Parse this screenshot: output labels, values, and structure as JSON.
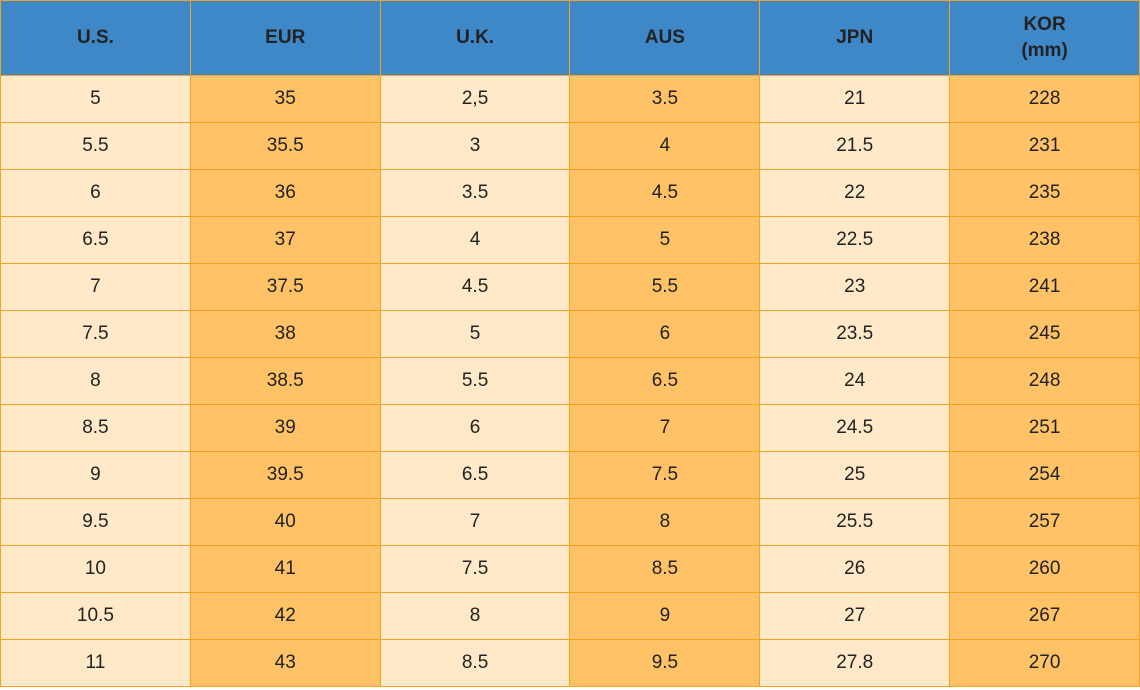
{
  "table": {
    "header": [
      "U.S.",
      "EUR",
      "U.K.",
      "AUS",
      "JPN",
      "KOR (mm)"
    ],
    "rows": [
      [
        "5",
        "35",
        "2,5",
        "3.5",
        "21",
        "228"
      ],
      [
        "5.5",
        "35.5",
        "3",
        "4",
        "21.5",
        "231"
      ],
      [
        "6",
        "36",
        "3.5",
        "4.5",
        "22",
        "235"
      ],
      [
        "6.5",
        "37",
        "4",
        "5",
        "22.5",
        "238"
      ],
      [
        "7",
        "37.5",
        "4.5",
        "5.5",
        "23",
        "241"
      ],
      [
        "7.5",
        "38",
        "5",
        "6",
        "23.5",
        "245"
      ],
      [
        "8",
        "38.5",
        "5.5",
        "6.5",
        "24",
        "248"
      ],
      [
        "8.5",
        "39",
        "6",
        "7",
        "24.5",
        "251"
      ],
      [
        "9",
        "39.5",
        "6.5",
        "7.5",
        "25",
        "254"
      ],
      [
        "9.5",
        "40",
        "7",
        "8",
        "25.5",
        "257"
      ],
      [
        "10",
        "41",
        "7.5",
        "8.5",
        "26",
        "260"
      ],
      [
        "10.5",
        "42",
        "8",
        "9",
        "27",
        "267"
      ],
      [
        "11",
        "43",
        "8.5",
        "9.5",
        "27.8",
        "270"
      ]
    ]
  }
}
